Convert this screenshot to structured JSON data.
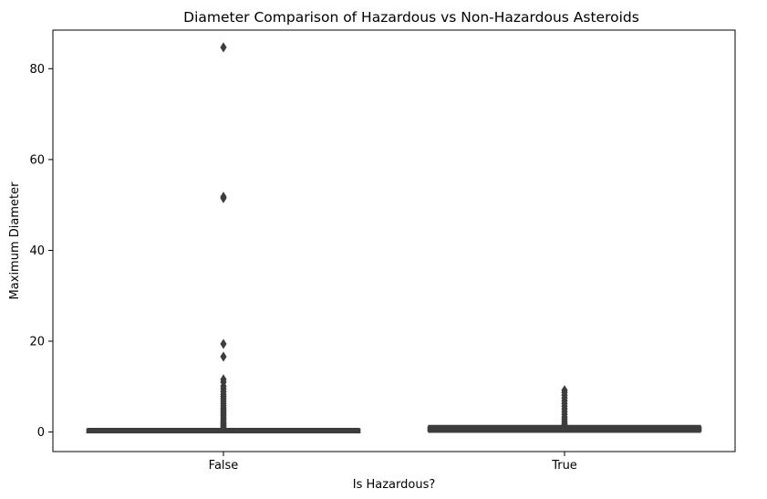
{
  "chart_data": {
    "type": "box",
    "title": "Diameter Comparison of Hazardous vs Non-Hazardous Asteroids",
    "xlabel": "Is Hazardous?",
    "ylabel": "Maximum Diameter",
    "categories": [
      "False",
      "True"
    ],
    "ylim": [
      -4.3,
      88.5
    ],
    "yticks": [
      0,
      20,
      40,
      60,
      80
    ],
    "grid": false,
    "legend": "none",
    "box_color": "#3d3d3d",
    "boxes": [
      {
        "category": "False",
        "q1": 0.05,
        "median": 0.2,
        "q3": 0.4,
        "whisker_low": 0.0,
        "whisker_high": 0.7,
        "outliers": [
          84.7,
          51.8,
          51.5,
          19.4,
          16.6,
          11.6,
          11.0,
          10.1,
          9.5,
          8.9,
          8.3,
          7.8,
          7.3,
          6.8,
          6.3,
          5.8,
          5.3,
          4.9,
          4.5,
          4.1,
          3.7,
          3.3,
          2.9,
          2.5,
          2.1,
          1.8,
          1.5,
          1.2,
          0.9
        ]
      },
      {
        "category": "True",
        "q1": 0.4,
        "median": 0.6,
        "q3": 0.9,
        "whisker_low": 0.05,
        "whisker_high": 1.35,
        "outliers": [
          9.2,
          8.7,
          8.1,
          7.5,
          6.9,
          6.3,
          5.7,
          5.1,
          4.5,
          3.9,
          3.3,
          2.8,
          2.3,
          1.9,
          1.6
        ]
      }
    ]
  }
}
